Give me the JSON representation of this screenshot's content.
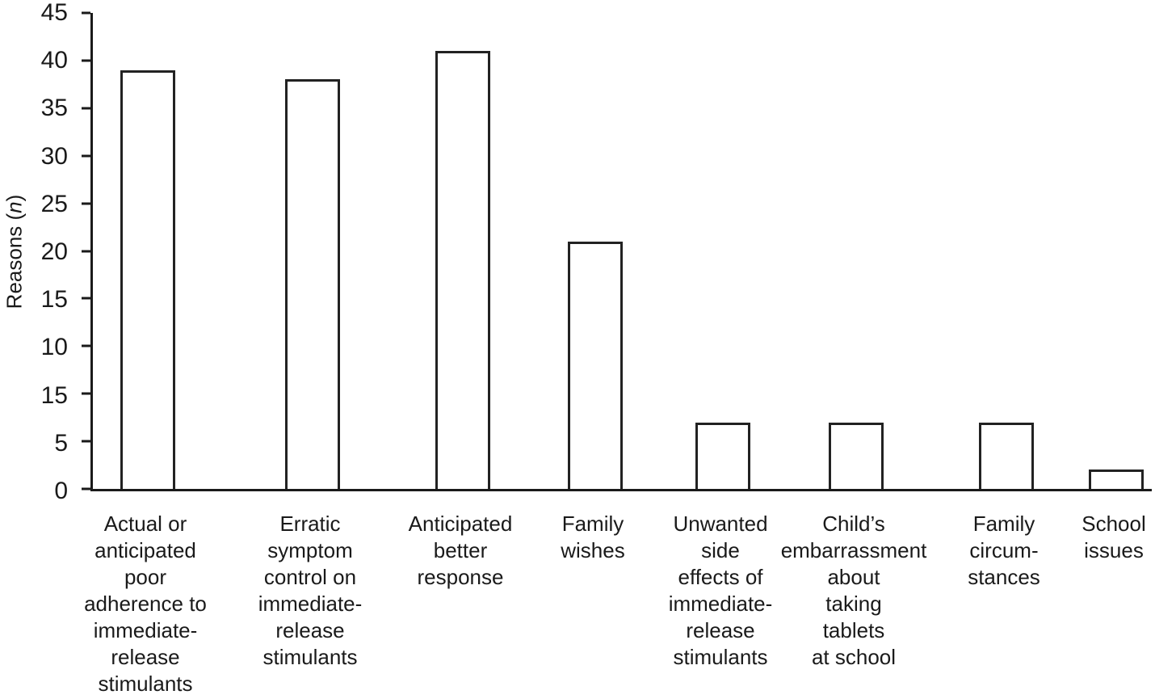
{
  "chart_data": {
    "type": "bar",
    "title": "",
    "xlabel": "",
    "ylabel": "Reasons (n)",
    "ylabel_parts": {
      "prefix": "Reasons (",
      "italic": "n",
      "suffix": ")"
    },
    "ylim": [
      0,
      45
    ],
    "grid": false,
    "legend": "none",
    "bar_fill": "#ffffff",
    "bar_border": "#222222",
    "axis_color": "#1a1a1a",
    "y_ticks_printed_bottom_to_top": [
      "0",
      "5",
      "15",
      "10",
      "15",
      "20",
      "25",
      "30",
      "35",
      "40",
      "45"
    ],
    "categories": [
      "Actual or\nanticipated\npoor\nadherence to\nimmediate-\nrelease\nstimulants",
      "Erratic\nsymptom\ncontrol on\nimmediate-\nrelease\nstimulants",
      "Anticipated\nbetter\nresponse",
      "Family\nwishes",
      "Unwanted\nside\neffects of\nimmediate-\nrelease\nstimulants",
      "Child’s\nembarrassment\nabout\ntaking\ntablets\nat school",
      "Family\ncircum-\nstances",
      "School\nissues"
    ],
    "values": [
      39,
      38,
      41,
      21,
      6,
      6,
      6,
      2
    ]
  }
}
